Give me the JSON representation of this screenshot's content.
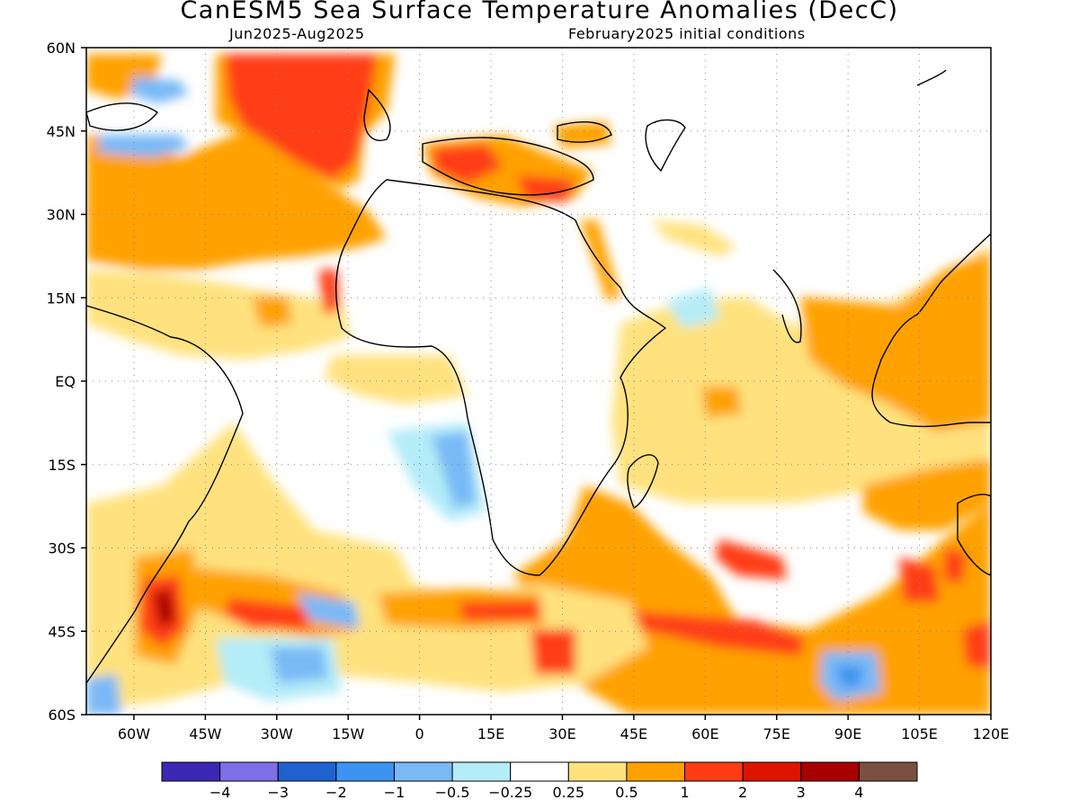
{
  "title": "CanESM5 Sea Surface Temperature Anomalies (DecC)",
  "subtitle_left": "Jun2025-Aug2025",
  "subtitle_right": "February2025 initial conditions",
  "lat_labels": [
    "60N",
    "45N",
    "30N",
    "15N",
    "EQ",
    "15S",
    "30S",
    "45S",
    "60S"
  ],
  "lon_labels": [
    "60W",
    "45W",
    "30W",
    "15W",
    "0",
    "15E",
    "30E",
    "45E",
    "60E",
    "75E",
    "90E",
    "105E",
    "120E"
  ],
  "colorbar": {
    "colors": [
      "#3c28b4",
      "#7d6fe6",
      "#1f62cf",
      "#3c93f0",
      "#78b9f6",
      "#b4ecf8",
      "#ffffff",
      "#ffe27e",
      "#ffa100",
      "#ff3c14",
      "#dc1400",
      "#a80000",
      "#7b5040"
    ],
    "labels": [
      "−4",
      "−3",
      "−2",
      "−1",
      "−0.5",
      "−0.25",
      "0.25",
      "0.5",
      "1",
      "2",
      "3",
      "4"
    ]
  },
  "map": {
    "lat_range": [
      -60,
      60
    ],
    "lon_range": [
      -70,
      120
    ]
  }
}
